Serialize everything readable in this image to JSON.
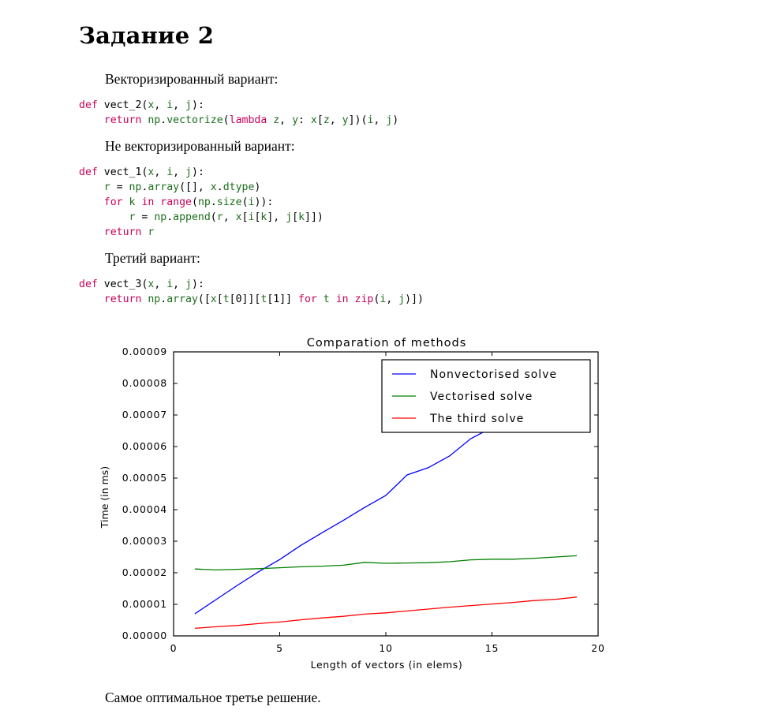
{
  "heading": "Задание 2",
  "sections": [
    {
      "label": "Векторизированный вариант:"
    },
    {
      "label": "Не векторизированный вариант:"
    },
    {
      "label": "Третий вариант:"
    }
  ],
  "code_blocks": [
    [
      "def vect_2(x, i, j):",
      "    return np.vectorize(lambda z, y: x[z, y])(i, j)"
    ],
    [
      "def vect_1(x, i, j):",
      "    r = np.array([], x.dtype)",
      "    for k in range(np.size(i)):",
      "        r = np.append(r, x[i[k], j[k]])",
      "    return r"
    ],
    [
      "def vect_3(x, i, j):",
      "    return np.array([x[t[0]][t[1]] for t in zip(i, j)])"
    ]
  ],
  "conclusion": "Самое оптимальное третье решение.",
  "chart_data": {
    "type": "line",
    "title": "Comparation of methods",
    "xlabel": "Length of vectors (in elems)",
    "ylabel": "Time (in ms)",
    "xlim": [
      0,
      20
    ],
    "ylim": [
      0,
      9e-05
    ],
    "x_ticks": [
      "0",
      "5",
      "10",
      "15",
      "20"
    ],
    "y_ticks": [
      "0.00000",
      "0.00001",
      "0.00002",
      "0.00003",
      "0.00004",
      "0.00005",
      "0.00006",
      "0.00007",
      "0.00008",
      "0.00009"
    ],
    "grid": false,
    "legend_position": "top-right",
    "x": [
      1,
      2,
      3,
      4,
      5,
      6,
      7,
      8,
      9,
      10,
      11,
      12,
      13,
      14,
      15,
      16,
      17,
      18,
      19
    ],
    "series": [
      {
        "name": "Nonvectorised solve",
        "color": "#0000ff",
        "values": [
          7e-06,
          1.15e-05,
          1.6e-05,
          2.03e-05,
          2.42e-05,
          2.87e-05,
          3.27e-05,
          3.66e-05,
          4.07e-05,
          4.45e-05,
          5.1e-05,
          5.33e-05,
          5.7e-05,
          6.25e-05,
          6.6e-05,
          7e-05,
          7.5e-05,
          8e-05,
          8.5e-05
        ]
      },
      {
        "name": "Vectorised solve",
        "color": "#008000",
        "values": [
          2.12e-05,
          2.09e-05,
          2.11e-05,
          2.13e-05,
          2.16e-05,
          2.19e-05,
          2.21e-05,
          2.24e-05,
          2.33e-05,
          2.3e-05,
          2.31e-05,
          2.32e-05,
          2.35e-05,
          2.41e-05,
          2.43e-05,
          2.43e-05,
          2.46e-05,
          2.5e-05,
          2.54e-05
        ]
      },
      {
        "name": "The third solve",
        "color": "#ff0000",
        "values": [
          2.4e-06,
          2.9e-06,
          3.3e-06,
          3.9e-06,
          4.4e-06,
          5.1e-06,
          5.7e-06,
          6.2e-06,
          6.9e-06,
          7.3e-06,
          7.9e-06,
          8.5e-06,
          9.1e-06,
          9.6e-06,
          1.01e-05,
          1.06e-05,
          1.12e-05,
          1.16e-05,
          1.23e-05
        ]
      }
    ]
  }
}
